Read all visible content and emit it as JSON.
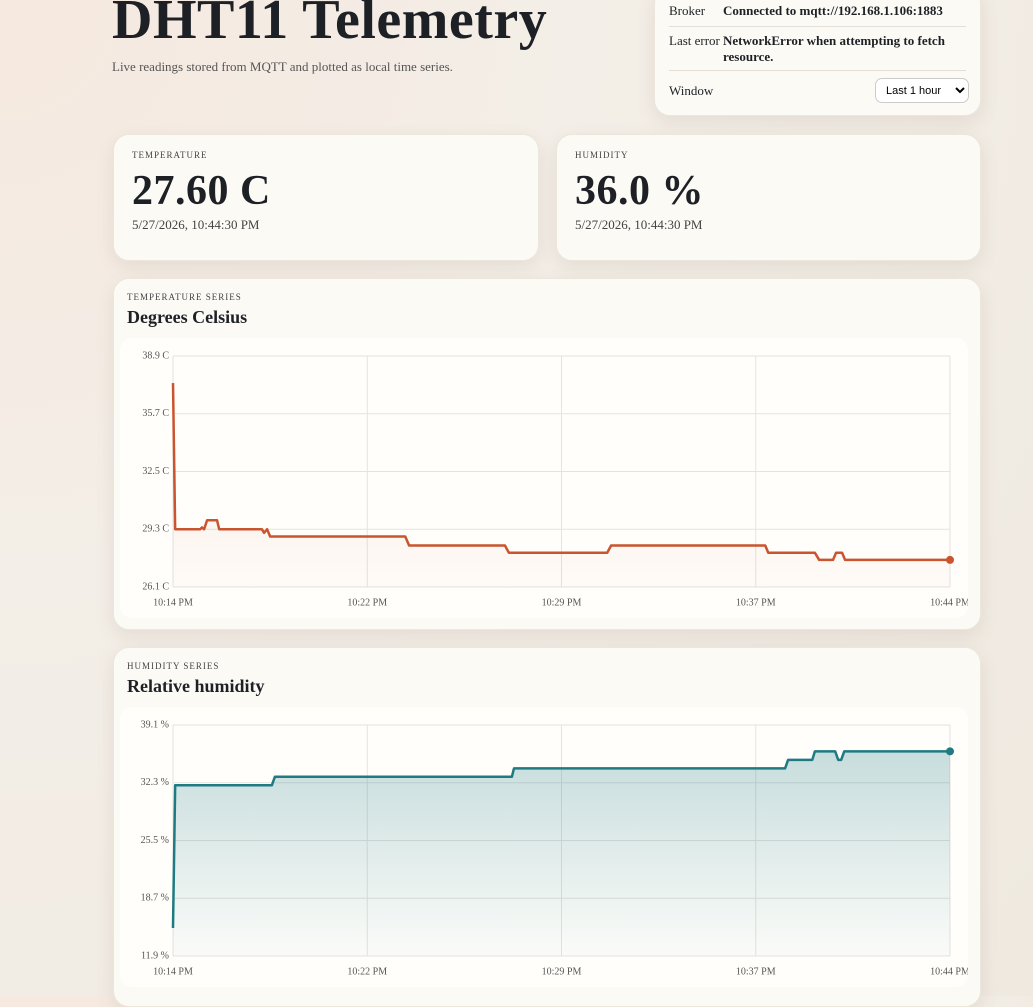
{
  "header": {
    "title": "DHT11 Telemetry",
    "subtitle": "Live readings stored from MQTT and plotted as local time series."
  },
  "status": {
    "rows": [
      {
        "label": "Broker",
        "value": "Connected to mqtt://192.168.1.106:1883"
      },
      {
        "label": "Last error",
        "value": "NetworkError when attempting to fetch resource."
      }
    ],
    "window": {
      "label": "Window",
      "selected": "Last 1 hour"
    }
  },
  "cards": [
    {
      "label": "TEMPERATURE",
      "value": "27.60 C",
      "time": "5/27/2026, 10:44:30 PM"
    },
    {
      "label": "HUMIDITY",
      "value": "36.0 %",
      "time": "5/27/2026, 10:44:30 PM"
    }
  ],
  "chart_data": [
    {
      "type": "line",
      "kicker": "TEMPERATURE SERIES",
      "title": "Degrees Celsius",
      "color": "#c9542e",
      "grid": true,
      "x": [
        "10:14:30 PM",
        "10:14:35 PM",
        "10:15:33 PM",
        "10:15:37 PM",
        "10:15:42 PM",
        "10:15:49 PM",
        "10:16:12 PM",
        "10:16:17 PM",
        "10:17:56 PM",
        "10:18:01 PM",
        "10:18:08 PM",
        "10:18:15 PM",
        "10:23:28 PM",
        "10:23:37 PM",
        "10:27:19 PM",
        "10:27:28 PM",
        "10:31:16 PM",
        "10:31:25 PM",
        "10:37:22 PM",
        "10:37:29 PM",
        "10:39:17 PM",
        "10:39:27 PM",
        "10:39:59 PM",
        "10:40:06 PM",
        "10:40:20 PM",
        "10:40:27 PM",
        "10:44:30 PM"
      ],
      "values": [
        37.4,
        29.3,
        29.3,
        29.4,
        29.3,
        29.8,
        29.8,
        29.3,
        29.3,
        29.1,
        29.3,
        28.9,
        28.9,
        28.4,
        28.4,
        28.0,
        28.0,
        28.4,
        28.4,
        28.0,
        28.0,
        27.6,
        27.6,
        28.0,
        28.0,
        27.6,
        27.6
      ],
      "xlim": [
        "10:14:30 PM",
        "10:44:30 PM"
      ],
      "xticks": [
        {
          "value": "10:14:30 PM",
          "label": "10:14 PM"
        },
        {
          "value": "10:22:00 PM",
          "label": "10:22 PM"
        },
        {
          "value": "10:29:30 PM",
          "label": "10:29 PM"
        },
        {
          "value": "10:37:00 PM",
          "label": "10:37 PM"
        },
        {
          "value": "10:44:30 PM",
          "label": "10:44 PM"
        }
      ],
      "ylim": [
        26.1,
        38.9
      ],
      "yticks": [
        {
          "value": 38.9,
          "label": "38.9 C"
        },
        {
          "value": 35.7,
          "label": "35.7 C"
        },
        {
          "value": 32.5,
          "label": "32.5 C"
        },
        {
          "value": 29.3,
          "label": "29.3 C"
        },
        {
          "value": 26.1,
          "label": "26.1 C"
        }
      ]
    },
    {
      "type": "line",
      "kicker": "HUMIDITY SERIES",
      "title": "Relative humidity",
      "color": "#1f7a82",
      "grid": true,
      "x": [
        "10:14:30 PM",
        "10:14:35 PM",
        "10:18:19 PM",
        "10:18:26 PM",
        "10:27:35 PM",
        "10:27:40 PM",
        "10:38:08 PM",
        "10:38:15 PM",
        "10:39:11 PM",
        "10:39:17 PM",
        "10:40:04 PM",
        "10:40:11 PM",
        "10:40:18 PM",
        "10:40:25 PM",
        "10:44:30 PM"
      ],
      "values": [
        15.2,
        32.0,
        32.0,
        33.0,
        33.0,
        34.0,
        34.0,
        35.0,
        35.0,
        36.0,
        36.0,
        35.0,
        35.0,
        36.0,
        36.0
      ],
      "xlim": [
        "10:14:30 PM",
        "10:44:30 PM"
      ],
      "xticks": [
        {
          "value": "10:14:30 PM",
          "label": "10:14 PM"
        },
        {
          "value": "10:22:00 PM",
          "label": "10:22 PM"
        },
        {
          "value": "10:29:30 PM",
          "label": "10:29 PM"
        },
        {
          "value": "10:37:00 PM",
          "label": "10:37 PM"
        },
        {
          "value": "10:44:30 PM",
          "label": "10:44 PM"
        }
      ],
      "ylim": [
        11.9,
        39.1
      ],
      "yticks": [
        {
          "value": 39.1,
          "label": "39.1 %"
        },
        {
          "value": 32.3,
          "label": "32.3 %"
        },
        {
          "value": 25.5,
          "label": "25.5 %"
        },
        {
          "value": 18.7,
          "label": "18.7 %"
        },
        {
          "value": 11.9,
          "label": "11.9 %"
        }
      ]
    }
  ]
}
